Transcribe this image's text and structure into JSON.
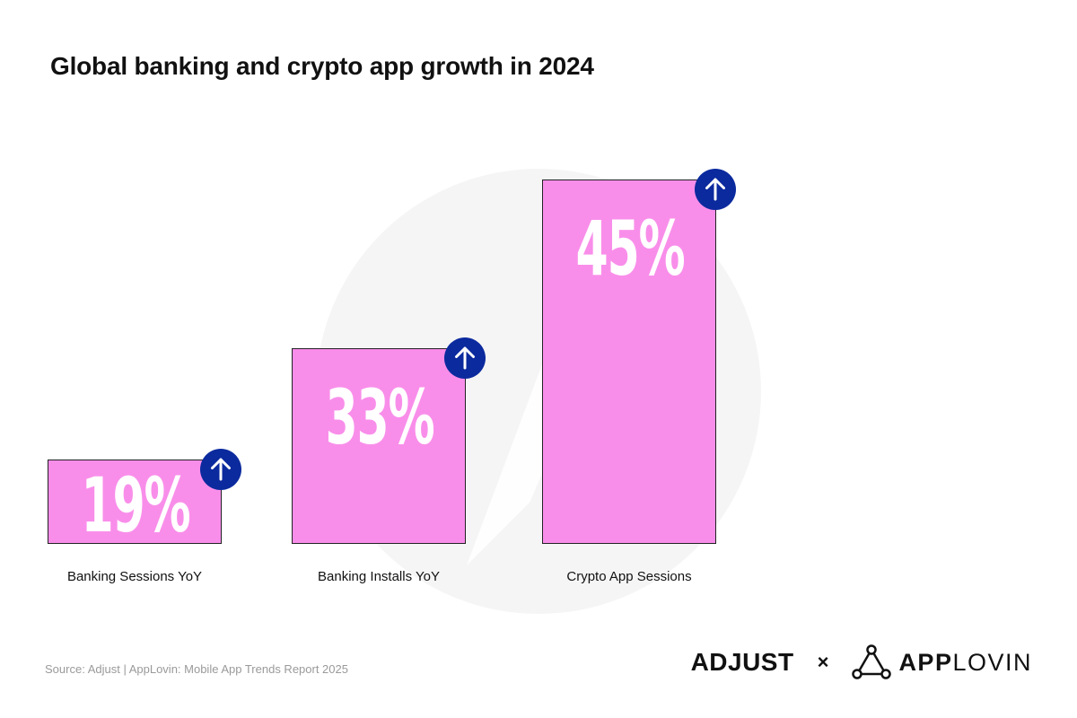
{
  "title": "Global banking and crypto app growth in 2024",
  "chart_data": {
    "type": "bar",
    "title": "Global banking and crypto app growth in 2024",
    "categories": [
      "Banking Sessions YoY",
      "Banking Installs YoY",
      "Crypto App Sessions"
    ],
    "values": [
      19,
      33,
      45
    ],
    "value_labels": [
      "19%",
      "33%",
      "45%"
    ],
    "unit": "%",
    "ylim": [
      0,
      45
    ],
    "grid": false,
    "legend": "none",
    "colors": {
      "bar": "#F98EEA",
      "badge": "#0B2A9E",
      "value_text": "#FFFFFF"
    }
  },
  "icons": {
    "increase_indicator": "arrow-up-icon"
  },
  "source": "Source: Adjust | AppLovin: Mobile App Trends Report 2025",
  "logos": {
    "adjust": "ADJUST",
    "separator": "×",
    "applovin_bold": "APP",
    "applovin_light": "LOVIN"
  }
}
